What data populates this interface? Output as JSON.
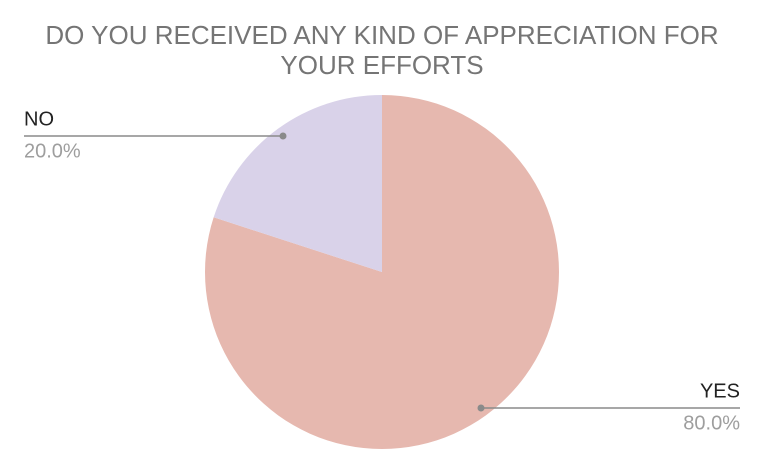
{
  "chart_data": {
    "type": "pie",
    "title": "DO YOU RECEIVED ANY KIND OF APPRECIATION FOR YOUR EFFORTS",
    "categories": [
      "YES",
      "NO"
    ],
    "values": [
      80,
      20
    ],
    "value_labels": [
      "80.0%",
      "20.0%"
    ],
    "colors": [
      "#e6b8af",
      "#d9d2e9"
    ]
  }
}
